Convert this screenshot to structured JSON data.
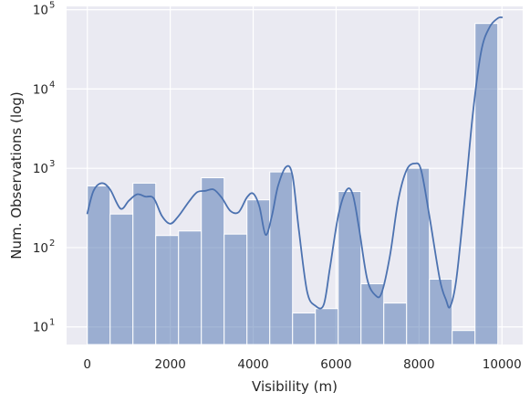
{
  "chart_data": {
    "type": "bar",
    "title": "",
    "xlabel": "Visibility (m)",
    "ylabel": "Num. Observations (log)",
    "y_scale": "log",
    "xlim": [
      -500,
      10500
    ],
    "ylim": [
      6,
      110000
    ],
    "grid": true,
    "x_ticks": [
      0,
      2000,
      4000,
      6000,
      8000,
      10000
    ],
    "x_tick_labels": [
      "0",
      "2000",
      "4000",
      "6000",
      "8000",
      "10000"
    ],
    "y_ticks": [
      {
        "value": 10,
        "base": "10",
        "exp": "1"
      },
      {
        "value": 100,
        "base": "10",
        "exp": "2"
      },
      {
        "value": 1000,
        "base": "10",
        "exp": "3"
      },
      {
        "value": 10000,
        "base": "10",
        "exp": "4"
      },
      {
        "value": 100000,
        "base": "10",
        "exp": "5"
      }
    ],
    "bin_width": 550,
    "bins": [
      {
        "start": 0,
        "count": 600
      },
      {
        "start": 550,
        "count": 265
      },
      {
        "start": 1100,
        "count": 650
      },
      {
        "start": 1650,
        "count": 142
      },
      {
        "start": 2200,
        "count": 162
      },
      {
        "start": 2750,
        "count": 760
      },
      {
        "start": 3300,
        "count": 148
      },
      {
        "start": 3850,
        "count": 400
      },
      {
        "start": 4400,
        "count": 900
      },
      {
        "start": 4950,
        "count": 15
      },
      {
        "start": 5500,
        "count": 17
      },
      {
        "start": 6050,
        "count": 510
      },
      {
        "start": 6600,
        "count": 35
      },
      {
        "start": 7150,
        "count": 20
      },
      {
        "start": 7700,
        "count": 1000
      },
      {
        "start": 8250,
        "count": 40
      },
      {
        "start": 8800,
        "count": 9
      },
      {
        "start": 9350,
        "count": 67000
      }
    ],
    "kde": [
      [
        0,
        270
      ],
      [
        150,
        520
      ],
      [
        350,
        650
      ],
      [
        550,
        540
      ],
      [
        800,
        310
      ],
      [
        1000,
        390
      ],
      [
        1200,
        470
      ],
      [
        1400,
        440
      ],
      [
        1600,
        420
      ],
      [
        1800,
        250
      ],
      [
        2000,
        200
      ],
      [
        2200,
        250
      ],
      [
        2450,
        380
      ],
      [
        2650,
        500
      ],
      [
        2850,
        520
      ],
      [
        3050,
        540
      ],
      [
        3250,
        420
      ],
      [
        3450,
        290
      ],
      [
        3650,
        280
      ],
      [
        3850,
        430
      ],
      [
        4000,
        480
      ],
      [
        4150,
        330
      ],
      [
        4300,
        145
      ],
      [
        4450,
        250
      ],
      [
        4600,
        600
      ],
      [
        4800,
        1050
      ],
      [
        4950,
        800
      ],
      [
        5100,
        170
      ],
      [
        5300,
        28
      ],
      [
        5500,
        18.5
      ],
      [
        5700,
        19
      ],
      [
        5850,
        55
      ],
      [
        6050,
        250
      ],
      [
        6250,
        530
      ],
      [
        6400,
        470
      ],
      [
        6550,
        180
      ],
      [
        6750,
        40
      ],
      [
        6950,
        25
      ],
      [
        7100,
        27
      ],
      [
        7300,
        80
      ],
      [
        7500,
        400
      ],
      [
        7700,
        950
      ],
      [
        7900,
        1150
      ],
      [
        8050,
        950
      ],
      [
        8250,
        250
      ],
      [
        8500,
        40
      ],
      [
        8650,
        22
      ],
      [
        8750,
        18
      ],
      [
        8900,
        40
      ],
      [
        9100,
        400
      ],
      [
        9300,
        5000
      ],
      [
        9500,
        30000
      ],
      [
        9700,
        60000
      ],
      [
        9900,
        78000
      ],
      [
        10000,
        80000
      ]
    ]
  },
  "colors": {
    "panel_bg": "#eaeaf2",
    "grid": "#ffffff",
    "bar_fill": "#4c72b0",
    "bar_fill_opacity": 0.5,
    "line": "#4c72b0",
    "text": "#262626"
  }
}
